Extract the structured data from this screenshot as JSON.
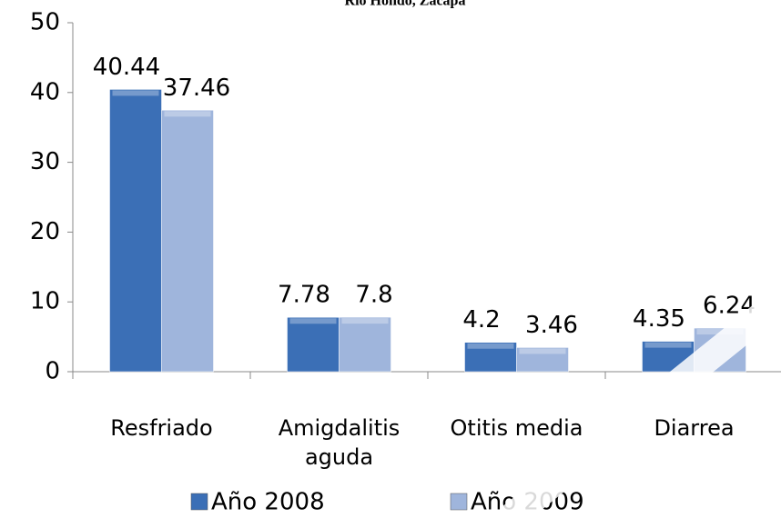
{
  "chart_data": {
    "type": "bar",
    "title": "Río Hondo, Zacapa",
    "categories": [
      "Resfriado",
      "Amigdalitis aguda",
      "Otitis media",
      "Diarrea"
    ],
    "series": [
      {
        "name": "Año 2008",
        "color": "#3b6fb6",
        "values": [
          40.44,
          7.78,
          4.2,
          4.35
        ]
      },
      {
        "name": "Año 2009",
        "color": "#9fb5dc",
        "values": [
          37.46,
          7.8,
          3.46,
          6.24
        ]
      }
    ],
    "ylim": [
      0,
      50
    ],
    "yticks": [
      0,
      10,
      20,
      30,
      40,
      50
    ],
    "legend": "bottom"
  }
}
